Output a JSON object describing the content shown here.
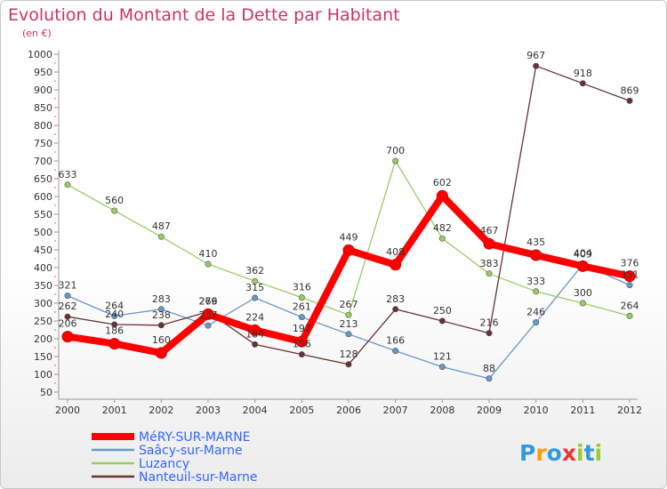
{
  "chart_data": {
    "type": "line",
    "title": "Evolution du Montant de la Dette par Habitant",
    "subtitle": "(en €)",
    "xlabel": "",
    "ylabel": "",
    "ylim": [
      50,
      1000
    ],
    "y_ticks": [
      50,
      100,
      150,
      200,
      250,
      300,
      350,
      400,
      450,
      500,
      550,
      600,
      650,
      700,
      750,
      800,
      850,
      900,
      950,
      1000
    ],
    "grid": false,
    "legend_position": "bottom-left",
    "categories": [
      "2000",
      "2001",
      "2002",
      "2003",
      "2004",
      "2005",
      "2006",
      "2007",
      "2008",
      "2009",
      "2010",
      "2011",
      "2012"
    ],
    "series": [
      {
        "name": "MéRY-SUR-MARNE",
        "color": "#ff0000",
        "values": [
          206,
          186,
          160,
          269,
          224,
          192,
          449,
          408,
          602,
          467,
          435,
          404,
          376
        ]
      },
      {
        "name": "Saâcy-sur-Marne",
        "color": "#6699cc",
        "values": [
          321,
          264,
          283,
          237,
          315,
          261,
          213,
          166,
          121,
          88,
          246,
          409,
          351
        ]
      },
      {
        "name": "Luzancy",
        "color": "#99cc66",
        "values": [
          633,
          560,
          487,
          410,
          362,
          316,
          267,
          700,
          482,
          383,
          333,
          300,
          264
        ]
      },
      {
        "name": "Nanteuil-sur-Marne",
        "color": "#663333",
        "values": [
          262,
          240,
          238,
          276,
          184,
          156,
          128,
          283,
          250,
          216,
          967,
          918,
          869
        ]
      }
    ]
  },
  "colors": {
    "title": "#cc3366",
    "axis": "#999999",
    "label": "#333333",
    "legend_text": "#3366ff"
  },
  "branding": {
    "logo_text": "Proxiti",
    "logo_letters": [
      "P",
      "r",
      "o",
      "x",
      "i",
      "t",
      "i"
    ],
    "logo_colors": [
      "#3399dd",
      "#ff9900",
      "#3399dd",
      "#ee3333",
      "#99cc33",
      "#3399dd",
      "#99cc33"
    ]
  }
}
